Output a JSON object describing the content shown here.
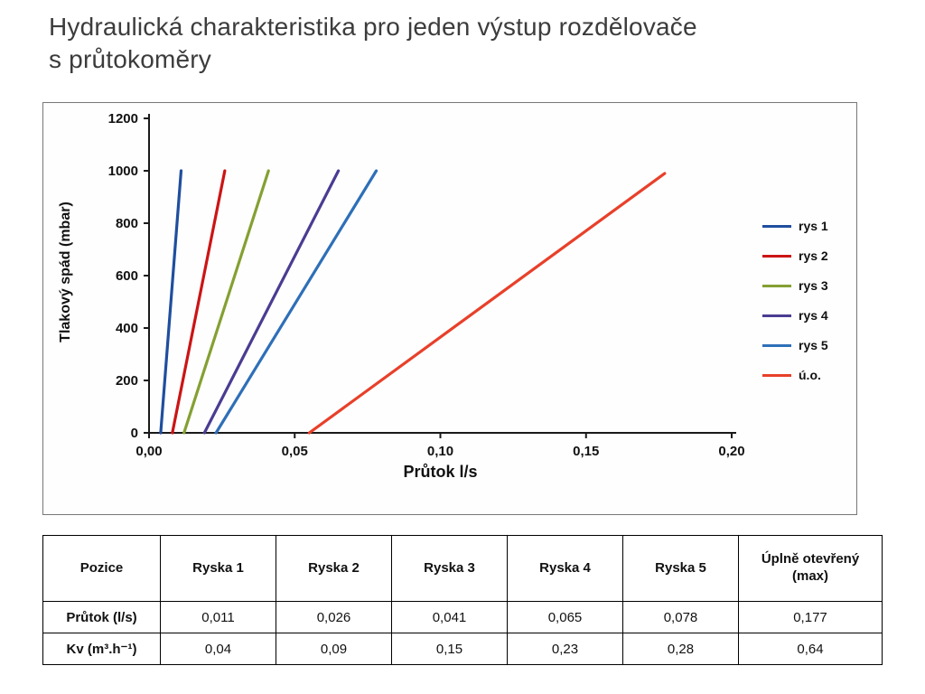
{
  "page": {
    "title_line1": "Hydraulická charakteristika pro jeden výstup rozdělovače",
    "title_line2": "s průtokoměry"
  },
  "chart_data": {
    "type": "line",
    "title": "",
    "xlabel": "Průtok l/s",
    "ylabel": "Tlakový spád (mbar)",
    "xlim": [
      0,
      0.2
    ],
    "ylim": [
      0,
      1200
    ],
    "xticks": [
      0.0,
      0.05,
      0.1,
      0.15,
      0.2
    ],
    "xtick_labels": [
      "0,00",
      "0,05",
      "0,10",
      "0,15",
      "0,20"
    ],
    "yticks": [
      0,
      200,
      400,
      600,
      800,
      1000,
      1200
    ],
    "grid": false,
    "legend_position": "right-inside",
    "series": [
      {
        "name": "rys 1",
        "color": "#1f4e9e",
        "x": [
          0.004,
          0.011
        ],
        "y": [
          0,
          1000
        ]
      },
      {
        "name": "rys 2",
        "color": "#cc1414",
        "x": [
          0.008,
          0.026
        ],
        "y": [
          0,
          1000
        ]
      },
      {
        "name": "rys 3",
        "color": "#84a032",
        "x": [
          0.012,
          0.041
        ],
        "y": [
          0,
          1000
        ]
      },
      {
        "name": "rys 4",
        "color": "#4a3c92",
        "x": [
          0.019,
          0.065
        ],
        "y": [
          0,
          1000
        ]
      },
      {
        "name": "rys 5",
        "color": "#2e6fb8",
        "x": [
          0.023,
          0.078
        ],
        "y": [
          0,
          1000
        ]
      },
      {
        "name": "ú.o.",
        "color": "#e8402a",
        "x": [
          0.055,
          0.177
        ],
        "y": [
          0,
          990
        ]
      }
    ]
  },
  "table": {
    "header": [
      "Pozice",
      "Ryska 1",
      "Ryska 2",
      "Ryska 3",
      "Ryska 4",
      "Ryska 5",
      "Úplně otevřený (max)"
    ],
    "rows": [
      {
        "label": "Průtok (l/s)",
        "values": [
          "0,011",
          "0,026",
          "0,041",
          "0,065",
          "0,078",
          "0,177"
        ]
      },
      {
        "label": "Kv (m³.h⁻¹)",
        "values": [
          "0,04",
          "0,09",
          "0,15",
          "0,23",
          "0,28",
          "0,64"
        ]
      }
    ]
  }
}
